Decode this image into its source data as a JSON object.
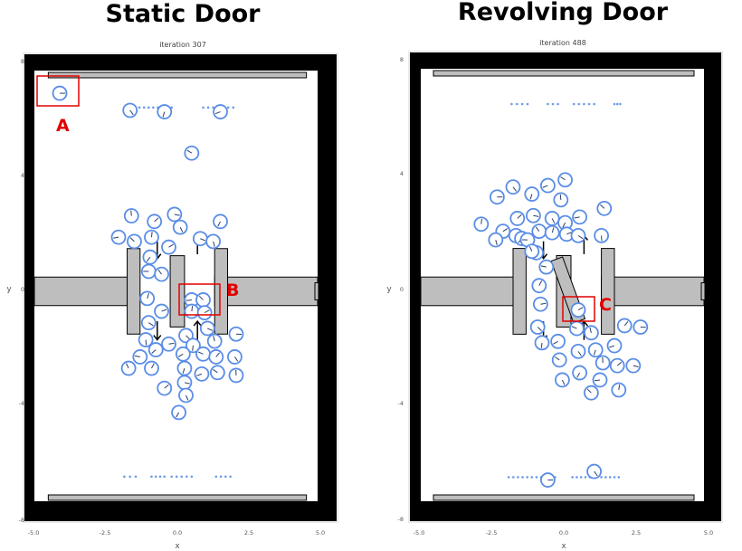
{
  "panels": [
    {
      "title": "Static Door",
      "iteration": "iteration 307",
      "xlabel": "x",
      "ylabel": "y",
      "xticks": [
        "-5.0",
        "-2.5",
        "0.0",
        "2.5",
        "5.0"
      ],
      "yticks": [
        "8",
        "4",
        "0",
        "-4",
        "-8"
      ],
      "markers": [
        "A",
        "B"
      ],
      "door_type": "static",
      "agents": [
        [
          -4.1,
          6.95
        ],
        [
          -1.65,
          6.35
        ],
        [
          -0.45,
          6.3
        ],
        [
          1.5,
          6.3
        ],
        [
          0.5,
          4.85
        ],
        [
          -1.6,
          2.65
        ],
        [
          -0.8,
          2.45
        ],
        [
          -0.1,
          2.7
        ],
        [
          0.1,
          2.25
        ],
        [
          1.5,
          2.45
        ],
        [
          -2.05,
          1.9
        ],
        [
          -1.5,
          1.75
        ],
        [
          -0.9,
          1.9
        ],
        [
          -0.3,
          1.55
        ],
        [
          0.8,
          1.85
        ],
        [
          1.25,
          1.75
        ],
        [
          -0.95,
          1.2
        ],
        [
          -1.0,
          0.7
        ],
        [
          -0.55,
          0.6
        ],
        [
          -1.05,
          -0.25
        ],
        [
          -0.55,
          -0.7
        ],
        [
          -1.0,
          -1.1
        ],
        [
          -1.1,
          -1.7
        ],
        [
          -0.75,
          -2.05
        ],
        [
          -1.3,
          -2.3
        ],
        [
          -1.7,
          -2.7
        ],
        [
          -0.9,
          -2.7
        ],
        [
          -0.3,
          -1.85
        ],
        [
          0.3,
          -1.55
        ],
        [
          0.55,
          -1.9
        ],
        [
          0.2,
          -2.2
        ],
        [
          0.9,
          -2.2
        ],
        [
          1.3,
          -1.75
        ],
        [
          1.35,
          -2.3
        ],
        [
          2.05,
          -1.5
        ],
        [
          2.0,
          -2.3
        ],
        [
          0.25,
          -2.7
        ],
        [
          0.85,
          -2.9
        ],
        [
          1.4,
          -2.85
        ],
        [
          2.05,
          -2.95
        ],
        [
          -0.45,
          -3.4
        ],
        [
          0.25,
          -3.2
        ],
        [
          0.3,
          -3.65
        ],
        [
          0.05,
          -4.25
        ],
        [
          0.5,
          -0.3
        ],
        [
          0.9,
          -0.3
        ],
        [
          0.5,
          -0.7
        ],
        [
          0.95,
          -0.75
        ],
        [
          1.05,
          -1.3
        ]
      ],
      "dots_top": [
        [
          -1.8,
          -0.2,
          6.45
        ],
        [
          0.9,
          1.95,
          6.45
        ]
      ],
      "dots_bottom": [
        [
          -1.85,
          -1.45,
          -6.5
        ],
        [
          -0.9,
          -0.45,
          -6.5
        ],
        [
          -0.2,
          0.5,
          -6.5
        ],
        [
          1.35,
          1.85,
          -6.5
        ]
      ]
    },
    {
      "title": "Revolving Door",
      "iteration": "iteration 488",
      "xlabel": "x",
      "ylabel": "y",
      "xticks": [
        "-5.0",
        "-2.5",
        "0.0",
        "2.5",
        "5.0"
      ],
      "yticks": [
        "8",
        "4",
        "0",
        "-4",
        "-8"
      ],
      "markers": [
        "C"
      ],
      "door_type": "revolving",
      "agents": [
        [
          -2.3,
          3.3
        ],
        [
          -1.75,
          3.65
        ],
        [
          -1.1,
          3.4
        ],
        [
          -0.55,
          3.7
        ],
        [
          0.05,
          3.9
        ],
        [
          -0.1,
          3.2
        ],
        [
          -1.6,
          2.55
        ],
        [
          -1.05,
          2.65
        ],
        [
          -0.4,
          2.55
        ],
        [
          0.05,
          2.4
        ],
        [
          0.55,
          2.6
        ],
        [
          1.4,
          2.9
        ],
        [
          -2.85,
          2.35
        ],
        [
          -2.1,
          2.1
        ],
        [
          -1.65,
          1.95
        ],
        [
          -2.35,
          1.8
        ],
        [
          -1.45,
          1.85
        ],
        [
          -1.25,
          1.8
        ],
        [
          -0.85,
          2.1
        ],
        [
          -0.4,
          2.05
        ],
        [
          0.1,
          2.0
        ],
        [
          0.5,
          1.95
        ],
        [
          1.3,
          1.95
        ],
        [
          -0.95,
          1.35
        ],
        [
          -0.6,
          0.85
        ],
        [
          -1.1,
          1.4
        ],
        [
          -0.85,
          0.2
        ],
        [
          -0.8,
          -0.45
        ],
        [
          -0.9,
          -1.25
        ],
        [
          -0.75,
          -1.8
        ],
        [
          -0.2,
          -1.75
        ],
        [
          0.45,
          -1.3
        ],
        [
          0.95,
          -1.45
        ],
        [
          2.1,
          -1.2
        ],
        [
          2.65,
          -1.25
        ],
        [
          0.5,
          -2.1
        ],
        [
          1.1,
          -2.05
        ],
        [
          1.75,
          -1.9
        ],
        [
          -0.15,
          -2.4
        ],
        [
          1.35,
          -2.5
        ],
        [
          1.85,
          -2.6
        ],
        [
          2.4,
          -2.6
        ],
        [
          -0.05,
          -3.1
        ],
        [
          0.55,
          -2.85
        ],
        [
          1.25,
          -3.1
        ],
        [
          0.95,
          -3.55
        ],
        [
          1.9,
          -3.45
        ],
        [
          0.5,
          -0.65
        ]
      ],
      "agents_edge": [
        [
          -0.55,
          -6.6
        ],
        [
          1.05,
          -6.3
        ]
      ],
      "dots_top": [
        [
          -1.8,
          -1.25,
          6.55
        ],
        [
          -0.55,
          -0.2,
          6.55
        ],
        [
          0.35,
          1.05,
          6.55
        ],
        [
          1.75,
          1.95,
          6.55
        ]
      ],
      "dots_bottom": [
        [
          -1.9,
          -0.3,
          -6.5
        ],
        [
          0.3,
          1.05,
          -6.5
        ],
        [
          1.3,
          1.9,
          -6.5
        ]
      ]
    }
  ]
}
